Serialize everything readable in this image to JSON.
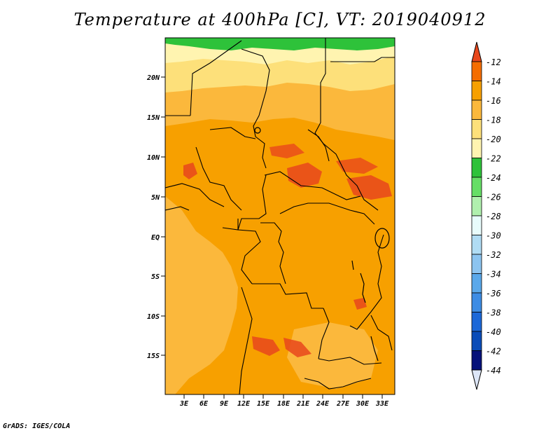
{
  "title": "Temperature at 400hPa [C], VT: 2019040912",
  "footer": "GrADS: IGES/COLA",
  "map": {
    "lat_ticks": [
      "20N",
      "15N",
      "10N",
      "5N",
      "EQ",
      "5S",
      "10S",
      "15S"
    ],
    "lon_ticks": [
      "3E",
      "6E",
      "9E",
      "12E",
      "15E",
      "18E",
      "21E",
      "24E",
      "27E",
      "30E",
      "33E"
    ]
  },
  "colorbar": {
    "levels": [
      "-12",
      "-14",
      "-16",
      "-18",
      "-20",
      "-22",
      "-24",
      "-26",
      "-28",
      "-30",
      "-32",
      "-34",
      "-36",
      "-38",
      "-40",
      "-42",
      "-44"
    ],
    "colors": [
      "#e8471c",
      "#f46d00",
      "#f7a000",
      "#fbb83c",
      "#fde07a",
      "#fff4b0",
      "#2ec23a",
      "#66de66",
      "#b0f0ae",
      "#e8fcfc",
      "#b0dcf4",
      "#8cc4f0",
      "#5aa8ea",
      "#3d8ce4",
      "#1c68d8",
      "#0a4cb8",
      "#06127a"
    ],
    "top_triangle_color": "#e8471c",
    "bottom_triangle_color": "#dde6f7"
  }
}
